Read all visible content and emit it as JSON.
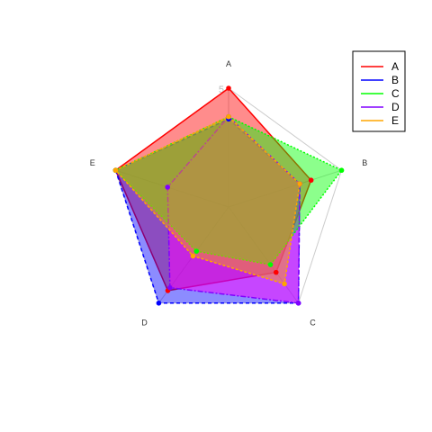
{
  "chart_data": {
    "type": "radar",
    "axes": [
      "A",
      "B",
      "C",
      "D",
      "E"
    ],
    "rmax": 5,
    "ring_label": "5",
    "series": [
      {
        "name": "A",
        "values": [
          5.0,
          3.65,
          3.4,
          4.35,
          5.0
        ],
        "color": "#ff0000",
        "fill_opacity": 0.45,
        "dash": ""
      },
      {
        "name": "B",
        "values": [
          3.7,
          3.15,
          5.0,
          5.0,
          5.0
        ],
        "color": "#0000ff",
        "fill_opacity": 0.45,
        "dash": "4,3"
      },
      {
        "name": "C",
        "values": [
          3.8,
          5.0,
          3.0,
          2.3,
          5.0
        ],
        "color": "#00ff00",
        "fill_opacity": 0.45,
        "dash": "2,2"
      },
      {
        "name": "D",
        "values": [
          3.8,
          3.15,
          5.0,
          4.2,
          2.7
        ],
        "color": "#8000ff",
        "fill_opacity": 0.0,
        "dash": "6,2,2,2"
      },
      {
        "name": "E",
        "values": [
          3.8,
          3.15,
          4.0,
          2.55,
          5.0
        ],
        "color": "#ffa500",
        "fill_opacity": 0.45,
        "dash": "3,2"
      }
    ],
    "extra_fill": {
      "color": "#ff00ff",
      "fill_opacity": 0.5,
      "values": [
        3.8,
        3.15,
        5.0,
        4.2,
        2.7
      ]
    },
    "grid": true,
    "legend_position": "top-right"
  }
}
